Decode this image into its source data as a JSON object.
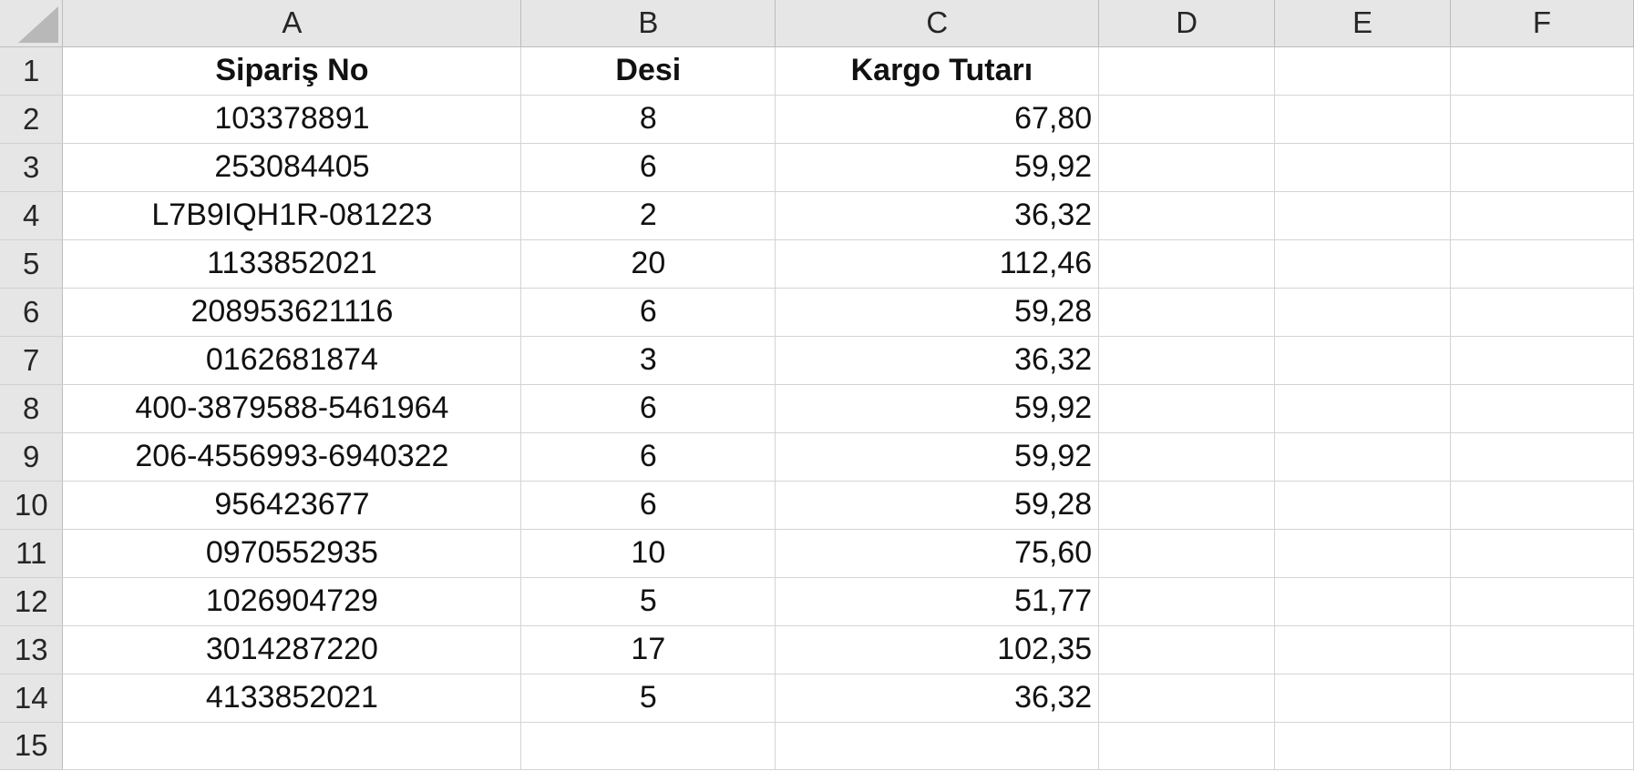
{
  "sheet": {
    "column_headers": [
      "A",
      "B",
      "C",
      "D",
      "E",
      "F"
    ],
    "rows": [
      {
        "num": "1",
        "a": "Sipariş No",
        "b": "Desi",
        "c": "Kargo Tutarı"
      },
      {
        "num": "2",
        "a": "103378891",
        "b": "8",
        "c": "67,80"
      },
      {
        "num": "3",
        "a": "253084405",
        "b": "6",
        "c": "59,92"
      },
      {
        "num": "4",
        "a": "L7B9IQH1R-081223",
        "b": "2",
        "c": "36,32"
      },
      {
        "num": "5",
        "a": "1133852021",
        "b": "20",
        "c": "112,46"
      },
      {
        "num": "6",
        "a": "208953621116",
        "b": "6",
        "c": "59,28"
      },
      {
        "num": "7",
        "a": "0162681874",
        "b": "3",
        "c": "36,32"
      },
      {
        "num": "8",
        "a": "400-3879588-5461964",
        "b": "6",
        "c": "59,92"
      },
      {
        "num": "9",
        "a": "206-4556993-6940322",
        "b": "6",
        "c": "59,92"
      },
      {
        "num": "10",
        "a": "956423677",
        "b": "6",
        "c": "59,28"
      },
      {
        "num": "11",
        "a": "0970552935",
        "b": "10",
        "c": "75,60"
      },
      {
        "num": "12",
        "a": "1026904729",
        "b": "5",
        "c": "51,77"
      },
      {
        "num": "13",
        "a": "3014287220",
        "b": "17",
        "c": "102,35"
      },
      {
        "num": "14",
        "a": "4133852021",
        "b": "5",
        "c": "36,32"
      },
      {
        "num": "15",
        "a": "",
        "b": "",
        "c": ""
      }
    ]
  }
}
